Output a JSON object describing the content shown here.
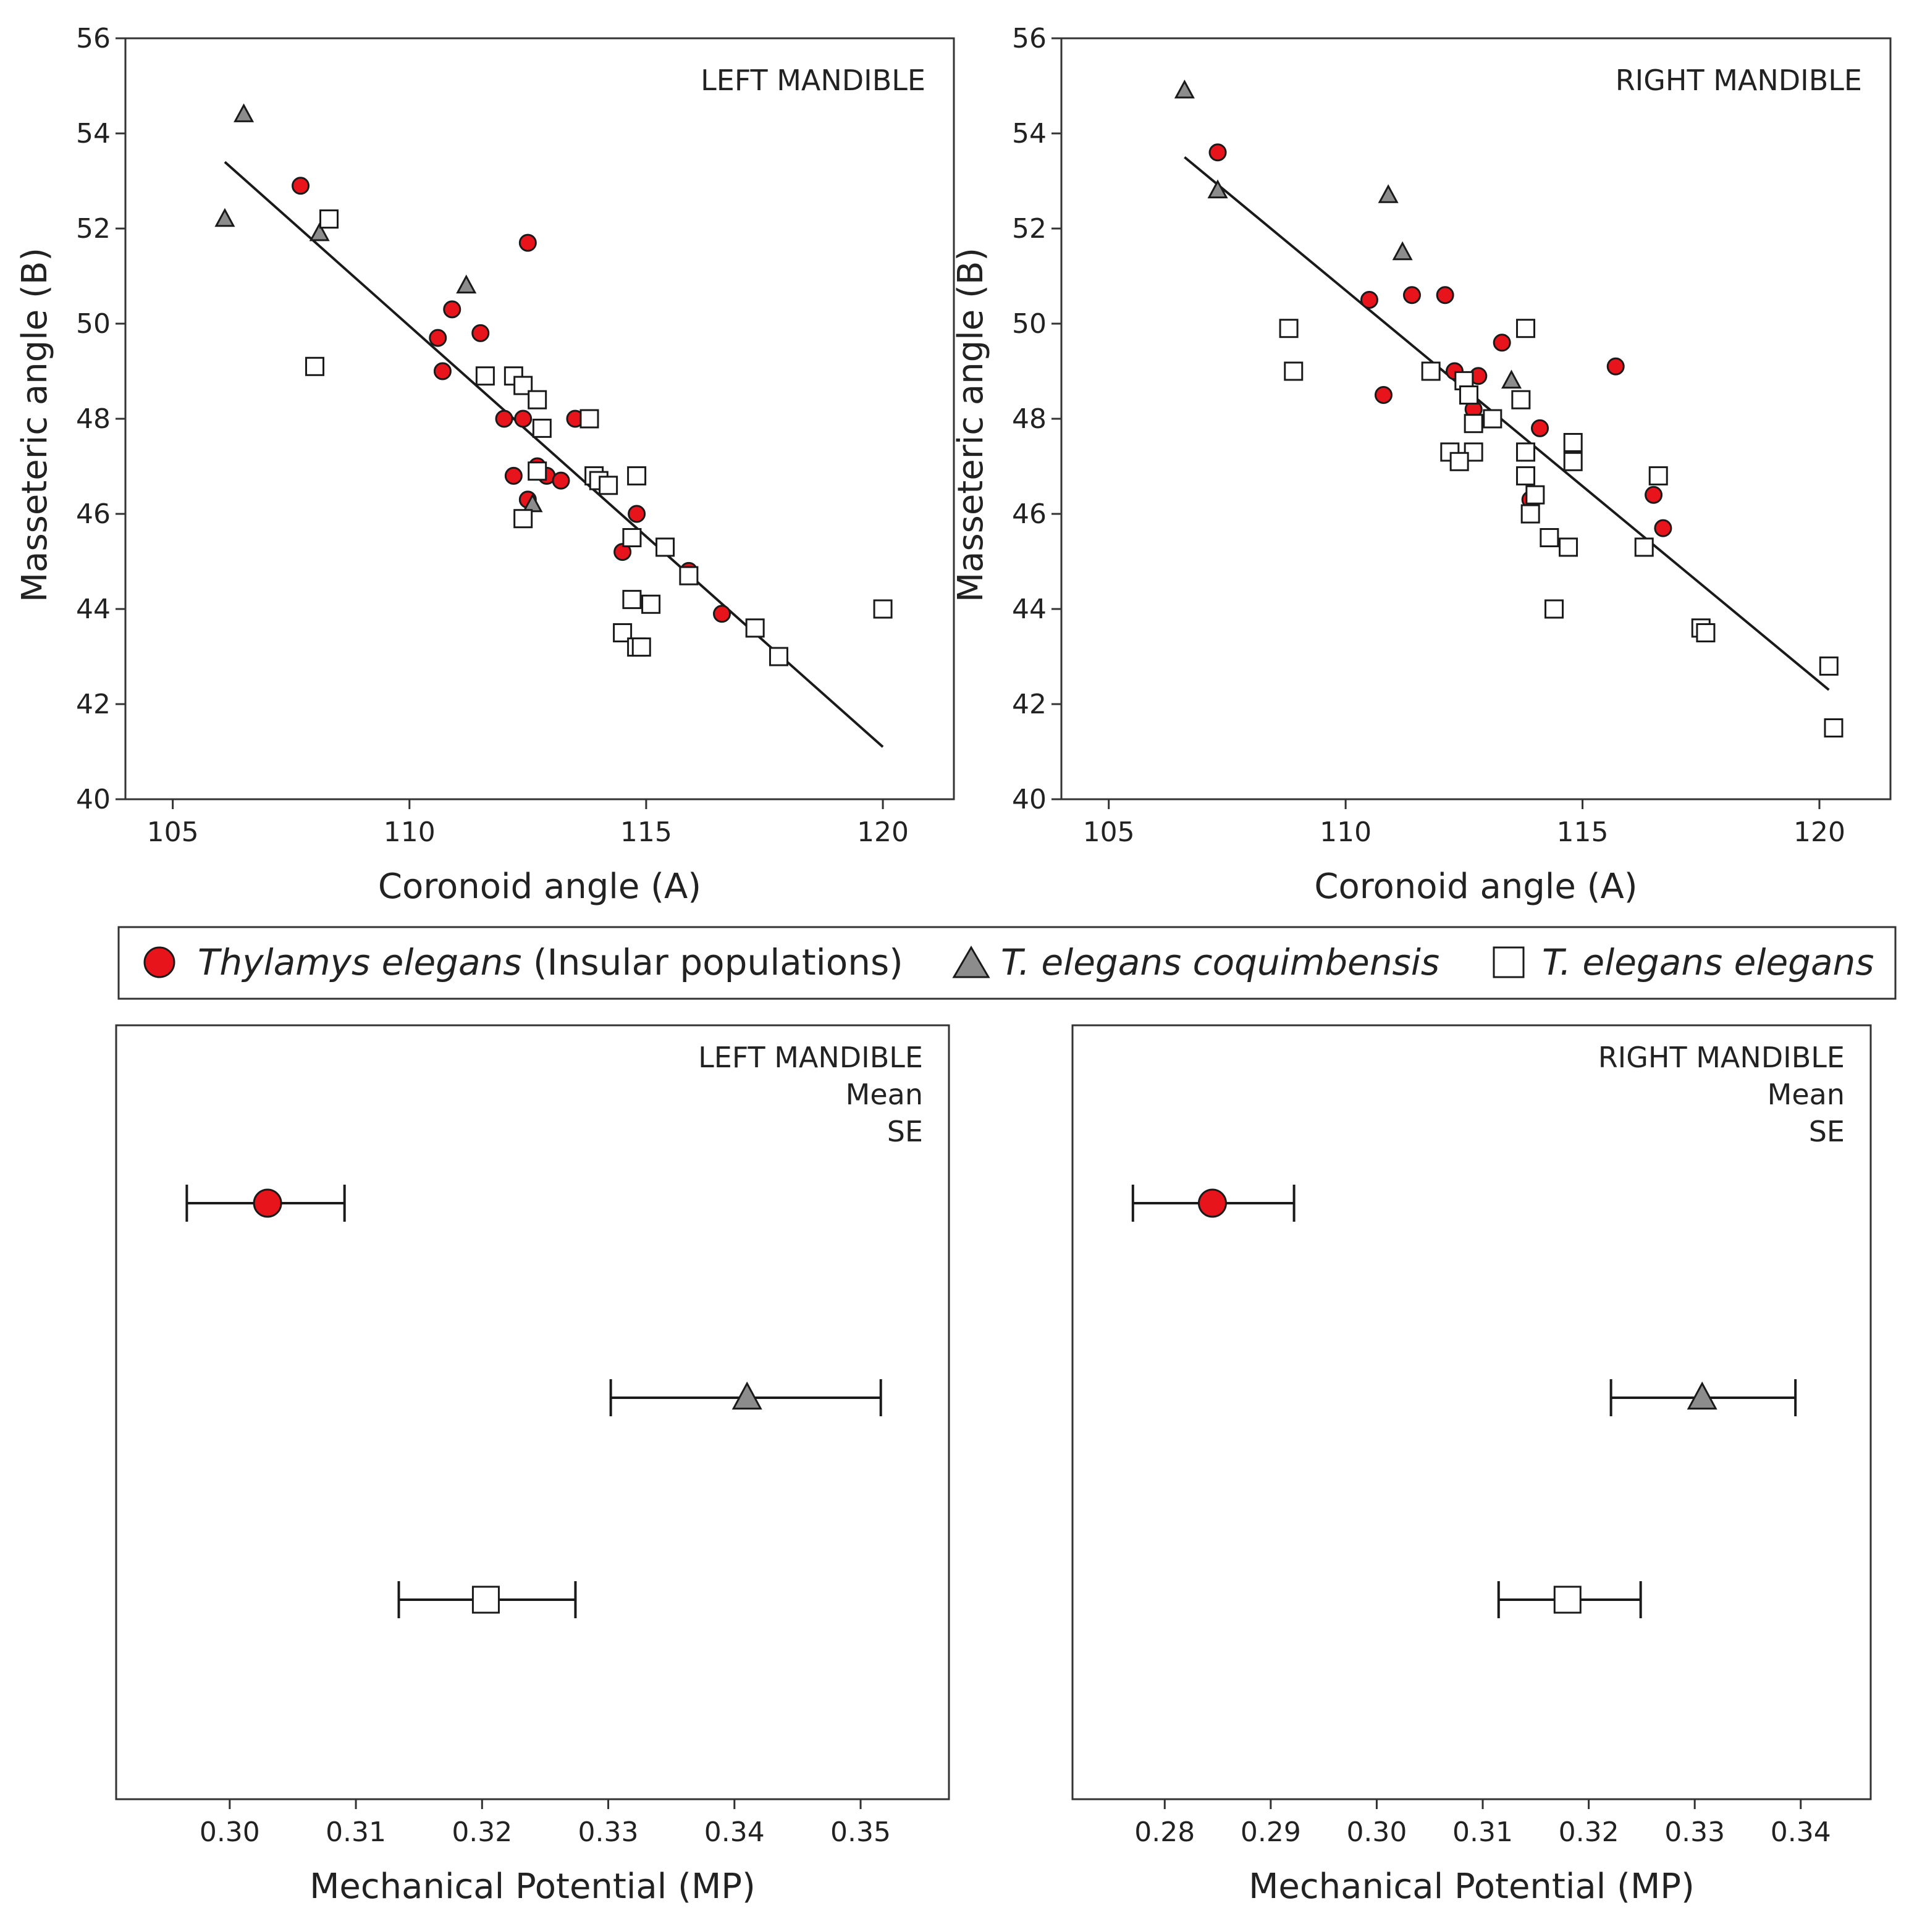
{
  "legend": {
    "items": [
      {
        "italic": "Thylamys elegans",
        "normal": " (Insular populations)",
        "marker": "circle"
      },
      {
        "italic": "T. elegans coquimbensis",
        "normal": "",
        "marker": "triangle"
      },
      {
        "italic": "T. elegans elegans",
        "normal": "",
        "marker": "square"
      }
    ]
  },
  "colors": {
    "insular": "#e8141c",
    "coquimbensis": "#8c8c8c",
    "elegans": "#ffffff",
    "stroke": "#1a1a1a"
  },
  "chart_data": [
    {
      "type": "scatter",
      "panel_label": "LEFT MANDIBLE",
      "xlabel": "Coronoid angle (A)",
      "ylabel": "Masseteric angle (B)",
      "xlim": [
        104,
        121.5
      ],
      "ylim": [
        40,
        56
      ],
      "xticks": [
        105,
        110,
        115,
        120
      ],
      "yticks": [
        40,
        42,
        44,
        46,
        48,
        50,
        52,
        54,
        56
      ],
      "regression": {
        "x": [
          106.1,
          120.0
        ],
        "y": [
          53.4,
          41.1
        ]
      },
      "series": [
        {
          "name": "Thylamys elegans (Insular populations)",
          "marker": "circle",
          "x": [
            107.7,
            112.5,
            110.9,
            111.5,
            110.6,
            110.7,
            112.0,
            112.4,
            113.5,
            112.2,
            112.7,
            112.9,
            113.2,
            112.5,
            114.8,
            114.5,
            115.9,
            116.6
          ],
          "y": [
            52.9,
            51.7,
            50.3,
            49.8,
            49.7,
            49.0,
            48.0,
            48.0,
            48.0,
            46.8,
            47.0,
            46.8,
            46.7,
            46.3,
            46.0,
            45.2,
            44.8,
            43.9
          ]
        },
        {
          "name": "T. elegans coquimbensis",
          "marker": "triangle",
          "x": [
            106.5,
            106.1,
            108.1,
            111.2,
            112.6
          ],
          "y": [
            54.4,
            52.2,
            51.9,
            50.8,
            46.2
          ]
        },
        {
          "name": "T. elegans elegans",
          "marker": "square",
          "x": [
            108.3,
            108.0,
            111.6,
            112.2,
            112.4,
            112.7,
            112.8,
            113.8,
            112.7,
            112.4,
            113.9,
            114.0,
            114.2,
            114.8,
            114.7,
            115.4,
            115.9,
            114.7,
            115.1,
            114.5,
            114.8,
            114.9,
            117.3,
            117.8,
            120.0
          ],
          "y": [
            52.2,
            49.1,
            48.9,
            48.9,
            48.7,
            48.4,
            47.8,
            48.0,
            46.9,
            45.9,
            46.8,
            46.7,
            46.6,
            46.8,
            45.5,
            45.3,
            44.7,
            44.2,
            44.1,
            43.5,
            43.2,
            43.2,
            43.6,
            43.0,
            44.0
          ]
        }
      ]
    },
    {
      "type": "scatter",
      "panel_label": "RIGHT MANDIBLE",
      "xlabel": "Coronoid angle (A)",
      "ylabel": "Masseteric angle (B)",
      "xlim": [
        104,
        121.5
      ],
      "ylim": [
        40,
        56
      ],
      "xticks": [
        105,
        110,
        115,
        120
      ],
      "yticks": [
        40,
        42,
        44,
        46,
        48,
        50,
        52,
        54,
        56
      ],
      "regression": {
        "x": [
          106.6,
          120.2
        ],
        "y": [
          53.5,
          42.3
        ]
      },
      "series": [
        {
          "name": "Thylamys elegans (Insular populations)",
          "marker": "circle",
          "x": [
            107.3,
            110.5,
            111.4,
            112.1,
            110.8,
            112.3,
            112.8,
            113.3,
            115.7,
            112.7,
            114.1,
            113.9,
            116.5,
            116.7
          ],
          "y": [
            53.6,
            50.5,
            50.6,
            50.6,
            48.5,
            49.0,
            48.9,
            49.6,
            49.1,
            48.2,
            47.8,
            46.3,
            46.4,
            45.7
          ]
        },
        {
          "name": "T. elegans coquimbensis",
          "marker": "triangle",
          "x": [
            106.6,
            107.3,
            110.9,
            111.2,
            113.5
          ],
          "y": [
            54.9,
            52.8,
            52.7,
            51.5,
            48.8
          ]
        },
        {
          "name": "T. elegans elegans",
          "marker": "square",
          "x": [
            108.8,
            108.9,
            111.8,
            112.5,
            112.6,
            113.8,
            112.7,
            113.1,
            113.7,
            112.2,
            112.7,
            112.4,
            113.8,
            113.8,
            114.0,
            113.9,
            114.8,
            114.8,
            114.3,
            114.7,
            116.3,
            116.6,
            114.4,
            117.5,
            117.6,
            120.2,
            120.3
          ],
          "y": [
            49.9,
            49.0,
            49.0,
            48.8,
            48.5,
            49.9,
            47.9,
            48.0,
            48.4,
            47.3,
            47.3,
            47.1,
            47.3,
            46.8,
            46.4,
            46.0,
            47.5,
            47.1,
            45.5,
            45.3,
            45.3,
            46.8,
            44.0,
            43.6,
            43.5,
            42.8,
            41.5
          ]
        }
      ]
    },
    {
      "type": "errorbar",
      "panel_label": "LEFT MANDIBLE",
      "panel_note_1": "Mean",
      "panel_note_2": "SE",
      "xlabel": "Mechanical Potential (MP)",
      "xlim": [
        0.291,
        0.357
      ],
      "xticks": [
        "0.30",
        "0.31",
        "0.32",
        "0.33",
        "0.34",
        "0.35"
      ],
      "groups": [
        {
          "name": "Thylamys elegans (Insular populations)",
          "marker": "circle",
          "mean": 0.303,
          "lower": 0.2966,
          "upper": 0.3091
        },
        {
          "name": "T. elegans coquimbensis",
          "marker": "triangle",
          "mean": 0.341,
          "lower": 0.3302,
          "upper": 0.3516
        },
        {
          "name": "T. elegans elegans",
          "marker": "square",
          "mean": 0.3203,
          "lower": 0.3134,
          "upper": 0.3274
        }
      ]
    },
    {
      "type": "errorbar",
      "panel_label": "RIGHT MANDIBLE",
      "panel_note_1": "Mean",
      "panel_note_2": "SE",
      "xlabel": "Mechanical Potential (MP)",
      "xlim": [
        0.2713,
        0.3466
      ],
      "xticks": [
        "0.28",
        "0.29",
        "0.30",
        "0.31",
        "0.32",
        "0.33",
        "0.34"
      ],
      "groups": [
        {
          "name": "Thylamys elegans (Insular populations)",
          "marker": "circle",
          "mean": 0.2845,
          "lower": 0.277,
          "upper": 0.2922
        },
        {
          "name": "T. elegans coquimbensis",
          "marker": "triangle",
          "mean": 0.3307,
          "lower": 0.3221,
          "upper": 0.3395
        },
        {
          "name": "T. elegans elegans",
          "marker": "square",
          "mean": 0.318,
          "lower": 0.3115,
          "upper": 0.3249
        }
      ]
    }
  ]
}
